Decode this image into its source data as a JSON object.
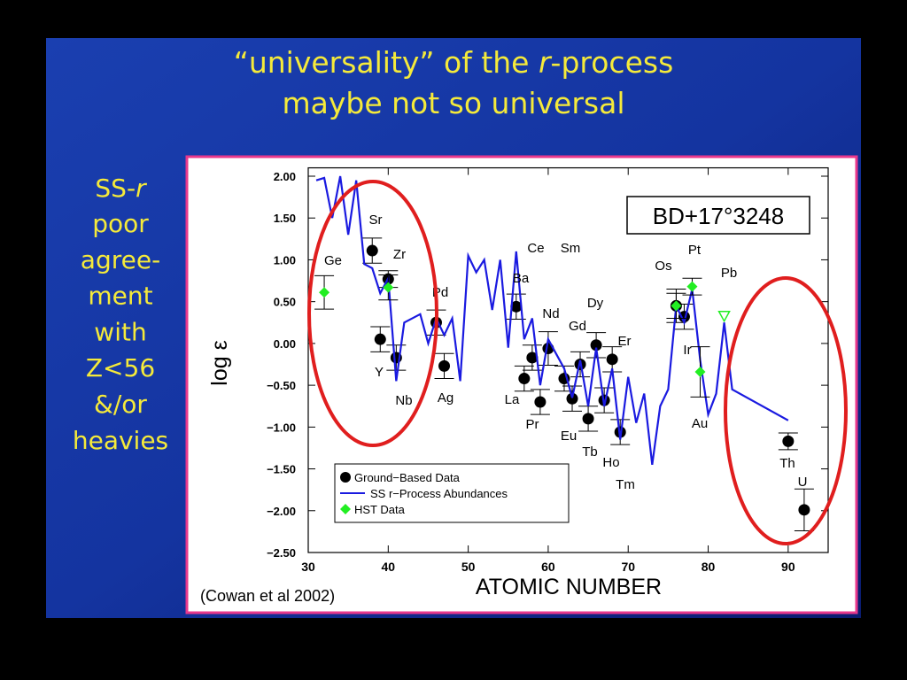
{
  "slide": {
    "title": {
      "line1": [
        "“universality” of the ",
        "r",
        "-process"
      ],
      "line2": "maybe not so universal"
    },
    "side_text": {
      "first": [
        "SS-",
        "r"
      ],
      "lines": [
        "poor",
        "agree-",
        "ment",
        "with",
        "Z<56",
        "&/or",
        "heavies"
      ]
    }
  },
  "chart_data": {
    "type": "scatter",
    "x_label": "ATOMIC NUMBER",
    "y_label": "log ε",
    "xlim": [
      30,
      95
    ],
    "xticks": [
      30,
      40,
      50,
      60,
      70,
      80,
      90
    ],
    "ylim": [
      -2.5,
      2.1
    ],
    "yticks": [
      {
        "value": 2,
        "label": "2.00"
      },
      {
        "value": 1.5,
        "label": "1.50"
      },
      {
        "value": 1,
        "label": "1.00"
      },
      {
        "value": 0.5,
        "label": "0.50"
      },
      {
        "value": 0,
        "label": "0.00"
      },
      {
        "value": -0.5,
        "label": "−0.50"
      },
      {
        "value": -1,
        "label": "−1.00"
      },
      {
        "value": -1.5,
        "label": "−1.50"
      },
      {
        "value": -2,
        "label": "−2.00"
      },
      {
        "value": -2.5,
        "label": "−2.50"
      }
    ],
    "legend": "lower left",
    "series": [
      {
        "name": "Ground−Based Data",
        "color": "#000000",
        "marker": "circle",
        "x": [
          38,
          39,
          40,
          41,
          46,
          47,
          56,
          57,
          58,
          59,
          60,
          62,
          63,
          64,
          65,
          66,
          67,
          68,
          69,
          76,
          77,
          90,
          92
        ],
        "values": [
          1.11,
          0.05,
          0.77,
          -0.17,
          0.25,
          -0.27,
          0.44,
          -0.42,
          -0.17,
          -0.7,
          -0.06,
          -0.42,
          -0.66,
          -0.25,
          -0.9,
          -0.02,
          -0.68,
          -0.19,
          -1.06,
          0.45,
          0.32,
          -1.17,
          -1.99
        ],
        "errors": [
          0.15,
          0.15,
          0.1,
          0.15,
          0.15,
          0.15,
          0.15,
          0.15,
          0.15,
          0.15,
          0.2,
          0.15,
          0.15,
          0.15,
          0.15,
          0.15,
          0.15,
          0.15,
          0.15,
          0.2,
          0.15,
          0.1,
          0.25
        ]
      },
      {
        "name": "SS r−Process Abundances",
        "color": "#1a1ae0",
        "marker": "line",
        "x": [
          31,
          32,
          33,
          34,
          35,
          36,
          37,
          38,
          39,
          40,
          41,
          42,
          44,
          45,
          46,
          47,
          48,
          49,
          50,
          51,
          52,
          53,
          54,
          55,
          56,
          57,
          58,
          59,
          60,
          62,
          63,
          64,
          65,
          66,
          67,
          68,
          69,
          70,
          71,
          72,
          73,
          74,
          75,
          76,
          77,
          78,
          79,
          80,
          81,
          82,
          83,
          90
        ],
        "values": [
          1.95,
          1.98,
          1.5,
          2.0,
          1.3,
          1.95,
          0.95,
          0.9,
          0.6,
          0.78,
          -0.45,
          0.25,
          0.35,
          0.0,
          0.3,
          0.1,
          0.3,
          -0.45,
          1.05,
          0.85,
          1.0,
          0.4,
          1.0,
          -0.05,
          1.1,
          0.05,
          0.3,
          -0.5,
          0.05,
          -0.3,
          -0.65,
          -0.2,
          -0.75,
          -0.05,
          -0.75,
          -0.3,
          -1.15,
          -0.4,
          -0.95,
          -0.6,
          -1.45,
          -0.75,
          -0.55,
          0.45,
          0.25,
          0.65,
          -0.2,
          -0.85,
          -0.6,
          0.25,
          -0.55,
          -0.92
        ]
      },
      {
        "name": "HST Data",
        "color": "#22ee22",
        "marker": "diamond",
        "x": [
          32,
          40,
          76,
          78,
          79
        ],
        "values": [
          0.61,
          0.67,
          0.45,
          0.68,
          -0.34
        ],
        "errors": [
          0.2,
          0.15,
          0.15,
          0.1,
          0.3
        ]
      }
    ],
    "extra_points": [
      {
        "x": 82,
        "value": 0.33,
        "marker": "triangle-open",
        "color": "#22ee22"
      }
    ],
    "element_labels": [
      "Ge",
      "Sr",
      "Zr",
      "Y",
      "Nb",
      "Pd",
      "Ag",
      "Ce",
      "Sm",
      "Ba",
      "Nd",
      "Gd",
      "Dy",
      "Er",
      "La",
      "Pr",
      "Eu",
      "Tb",
      "Ho",
      "Tm",
      "Os",
      "Pt",
      "Pb",
      "Ir",
      "Au",
      "Th",
      "U"
    ],
    "annotation": "BD+17°3248",
    "citation": "(Cowan et al 2002)"
  }
}
